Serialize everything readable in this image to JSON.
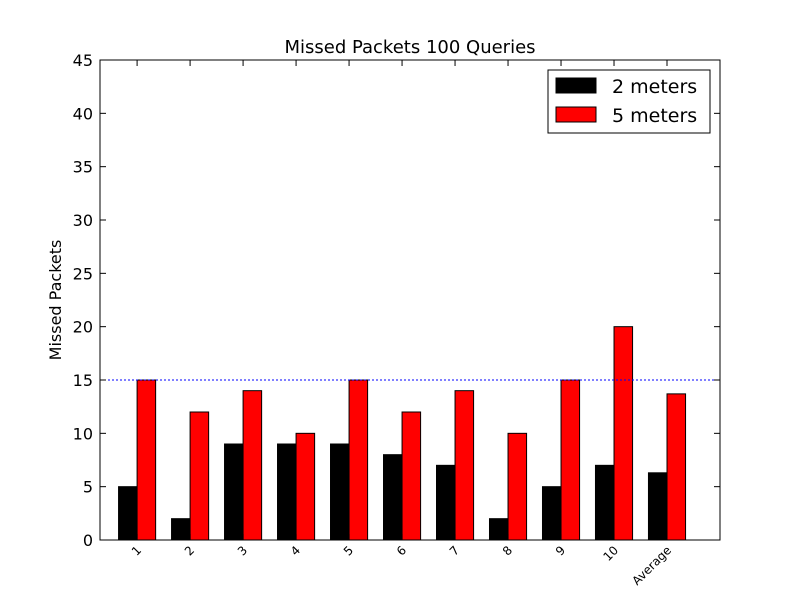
{
  "chart_data": {
    "type": "bar",
    "title": "Missed Packets 100 Queries",
    "xlabel": "",
    "ylabel": "Missed Packets",
    "categories": [
      "1",
      "2",
      "3",
      "4",
      "5",
      "6",
      "7",
      "8",
      "9",
      "10",
      "Average"
    ],
    "series": [
      {
        "name": "2 meters",
        "color": "#000000",
        "values": [
          5,
          2,
          9,
          9,
          9,
          8,
          7,
          2,
          5,
          7,
          6.3
        ]
      },
      {
        "name": "5 meters",
        "color": "#ff0000",
        "values": [
          15,
          12,
          14,
          10,
          15,
          12,
          14,
          10,
          15,
          20,
          13.7
        ]
      }
    ],
    "ylim": [
      0,
      45
    ],
    "yticks": [
      0,
      5,
      10,
      15,
      20,
      25,
      30,
      35,
      40,
      45
    ],
    "reference_line": {
      "value": 15,
      "color": "#0000ff",
      "style": "dotted"
    },
    "grid": false,
    "legend_position": "top-right"
  }
}
